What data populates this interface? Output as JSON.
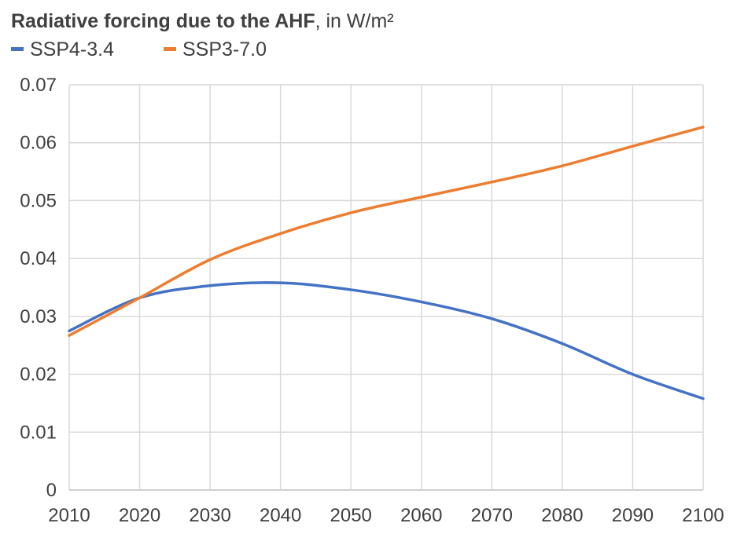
{
  "title": {
    "bold_part": "Radiative forcing due to the AHF",
    "normal_part": ", in W/m²"
  },
  "colors": {
    "grid": "#d9d9d9",
    "axis": "#bfbfbf",
    "series_blue": "#4472c4",
    "series_orange": "#ed7d31"
  },
  "chart_data": {
    "type": "line",
    "title": "Radiative forcing due to the AHF, in W/m²",
    "xlabel": "",
    "ylabel": "",
    "xlim": [
      2010,
      2100
    ],
    "ylim": [
      0,
      0.07
    ],
    "x_ticks": [
      2010,
      2020,
      2030,
      2040,
      2050,
      2060,
      2070,
      2080,
      2090,
      2100
    ],
    "y_ticks": [
      0,
      0.01,
      0.02,
      0.03,
      0.04,
      0.05,
      0.06,
      0.07
    ],
    "y_tick_labels": [
      "0",
      "0.01",
      "0.02",
      "0.03",
      "0.04",
      "0.05",
      "0.06",
      "0.07"
    ],
    "grid": true,
    "legend_position": "top-left",
    "x": [
      2010,
      2020,
      2030,
      2040,
      2050,
      2060,
      2070,
      2080,
      2090,
      2100
    ],
    "series": [
      {
        "name": "SSP4-3.4",
        "color": "#4472c4",
        "values": [
          0.0275,
          0.0332,
          0.0353,
          0.0358,
          0.0346,
          0.0325,
          0.0296,
          0.0253,
          0.02,
          0.0158
        ]
      },
      {
        "name": "SSP3-7.0",
        "color": "#ed7d31",
        "values": [
          0.0267,
          0.0332,
          0.0398,
          0.0443,
          0.0479,
          0.0506,
          0.0532,
          0.056,
          0.0594,
          0.0627
        ]
      }
    ]
  }
}
